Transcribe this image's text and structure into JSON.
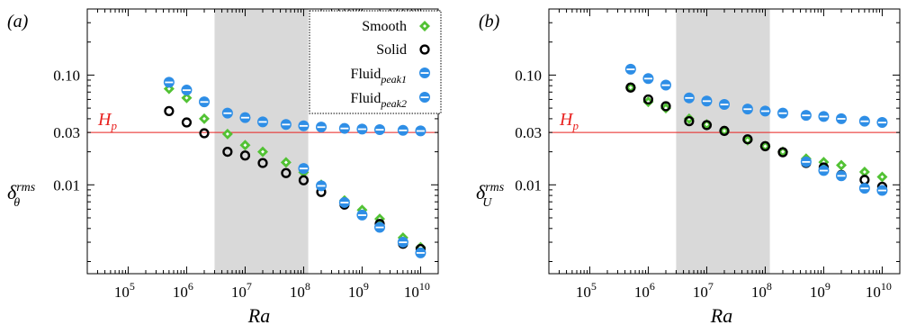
{
  "colors": {
    "smooth": "#52c234",
    "solid": "#000000",
    "fluid": "#2e8ee6",
    "threshold": "#e8201e",
    "shade": "#d9d9d9"
  },
  "legend": {
    "smooth": "Smooth",
    "solid": "Solid",
    "fluid1_base": "Fluid",
    "fluid1_sub": "peak1",
    "fluid2_base": "Fluid",
    "fluid2_sub": "peak2"
  },
  "chart_data": [
    {
      "type": "scatter",
      "panel_label": "(a)",
      "xlabel": "Ra",
      "ylabel_base": "δ",
      "ylabel_sup": "rms",
      "ylabel_sub": "θ",
      "x_scale": "log",
      "y_scale": "log",
      "xlim": [
        20000,
        20000000000
      ],
      "ylim": [
        0.00155,
        0.4
      ],
      "x_ticks": [
        {
          "value": 100000,
          "base": "10",
          "exp": "5"
        },
        {
          "value": 1000000,
          "base": "10",
          "exp": "6"
        },
        {
          "value": 10000000,
          "base": "10",
          "exp": "7"
        },
        {
          "value": 100000000,
          "base": "10",
          "exp": "8"
        },
        {
          "value": 1000000000,
          "base": "10",
          "exp": "9"
        },
        {
          "value": 10000000000,
          "base": "10",
          "exp": "10"
        }
      ],
      "y_ticks": [
        {
          "value": 0.01,
          "label": "0.01"
        },
        {
          "value": 0.03,
          "label": "0.03"
        },
        {
          "value": 0.1,
          "label": "0.10"
        }
      ],
      "shaded_region": [
        3000000,
        120000000
      ],
      "threshold": {
        "value": 0.03,
        "label_base": "H",
        "label_sub": "p"
      },
      "legend_position": "top-right",
      "series": [
        {
          "name": "Smooth",
          "marker": "diamond",
          "x": [
            500000,
            1000000,
            2000000,
            5000000,
            10000000,
            20000000,
            50000000,
            100000000,
            200000000,
            500000000,
            1000000000,
            2000000000,
            5000000000,
            10000000000
          ],
          "y": [
            0.075,
            0.062,
            0.04,
            0.029,
            0.023,
            0.02,
            0.016,
            0.013,
            0.01,
            0.0072,
            0.0059,
            0.0049,
            0.0033,
            0.0027
          ]
        },
        {
          "name": "Solid",
          "marker": "ring",
          "x": [
            500000,
            1000000,
            2000000,
            5000000,
            10000000,
            20000000,
            50000000,
            100000000,
            200000000,
            500000000,
            1000000000,
            2000000000,
            5000000000,
            10000000000
          ],
          "y": [
            0.047,
            0.037,
            0.0295,
            0.02,
            0.0185,
            0.0158,
            0.0128,
            0.011,
            0.0086,
            0.0066,
            0.0053,
            0.0044,
            0.0029,
            0.0026
          ]
        },
        {
          "name": "Fluidpeak1",
          "marker": "half-circle",
          "x": [
            500000,
            1000000,
            2000000,
            5000000,
            10000000,
            20000000,
            50000000,
            100000000,
            200000000,
            500000000,
            1000000000,
            2000000000,
            5000000000,
            10000000000
          ],
          "y": [
            0.086,
            0.073,
            0.057,
            0.045,
            0.041,
            0.0375,
            0.0355,
            0.0345,
            0.0336,
            0.0327,
            0.0322,
            0.0318,
            0.0314,
            0.031
          ]
        },
        {
          "name": "Fluidpeak2",
          "marker": "half-circle",
          "x": [
            100000000,
            200000000,
            500000000,
            1000000000,
            2000000000,
            5000000000,
            10000000000
          ],
          "y": [
            0.0141,
            0.0098,
            0.0069,
            0.0053,
            0.0041,
            0.003,
            0.0024
          ]
        }
      ]
    },
    {
      "type": "scatter",
      "panel_label": "(b)",
      "xlabel": "Ra",
      "ylabel_base": "δ",
      "ylabel_sup": "rms",
      "ylabel_sub": "U",
      "x_scale": "log",
      "y_scale": "log",
      "xlim": [
        20000,
        20000000000
      ],
      "ylim": [
        0.00155,
        0.4
      ],
      "x_ticks": [
        {
          "value": 100000,
          "base": "10",
          "exp": "5"
        },
        {
          "value": 1000000,
          "base": "10",
          "exp": "6"
        },
        {
          "value": 10000000,
          "base": "10",
          "exp": "7"
        },
        {
          "value": 100000000,
          "base": "10",
          "exp": "8"
        },
        {
          "value": 1000000000,
          "base": "10",
          "exp": "9"
        },
        {
          "value": 10000000000,
          "base": "10",
          "exp": "10"
        }
      ],
      "y_ticks": [
        {
          "value": 0.01,
          "label": "0.01"
        },
        {
          "value": 0.03,
          "label": "0.03"
        },
        {
          "value": 0.1,
          "label": "0.10"
        }
      ],
      "shaded_region": [
        3000000,
        120000000
      ],
      "threshold": {
        "value": 0.03,
        "label_base": "H",
        "label_sub": "p"
      },
      "series": [
        {
          "name": "Smooth",
          "marker": "diamond",
          "x": [
            500000,
            1000000,
            2000000,
            5000000,
            10000000,
            20000000,
            50000000,
            100000000,
            200000000,
            500000000,
            1000000000,
            2000000000,
            5000000000,
            10000000000
          ],
          "y": [
            0.077,
            0.057,
            0.05,
            0.04,
            0.0355,
            0.031,
            0.0255,
            0.0225,
            0.02,
            0.0173,
            0.0161,
            0.0151,
            0.0131,
            0.0118
          ]
        },
        {
          "name": "Solid",
          "marker": "ring",
          "x": [
            500000,
            1000000,
            2000000,
            5000000,
            10000000,
            20000000,
            50000000,
            100000000,
            200000000,
            500000000,
            1000000000,
            2000000000,
            5000000000,
            10000000000
          ],
          "y": [
            0.077,
            0.06,
            0.052,
            0.038,
            0.035,
            0.031,
            0.026,
            0.0225,
            0.0198,
            0.0158,
            0.0144,
            0.0123,
            0.0111,
            0.0096
          ]
        },
        {
          "name": "Fluidpeak1",
          "marker": "half-circle",
          "x": [
            500000,
            1000000,
            2000000,
            5000000,
            10000000,
            20000000,
            50000000,
            100000000,
            200000000,
            500000000,
            1000000000,
            2000000000,
            5000000000,
            10000000000
          ],
          "y": [
            0.113,
            0.093,
            0.081,
            0.062,
            0.058,
            0.054,
            0.049,
            0.047,
            0.045,
            0.043,
            0.042,
            0.04,
            0.038,
            0.037
          ]
        },
        {
          "name": "Fluidpeak2",
          "marker": "half-circle",
          "x": [
            500000000,
            1000000000,
            2000000000,
            5000000000,
            10000000000
          ],
          "y": [
            0.0162,
            0.0135,
            0.0121,
            0.0093,
            0.0089
          ]
        }
      ]
    }
  ]
}
